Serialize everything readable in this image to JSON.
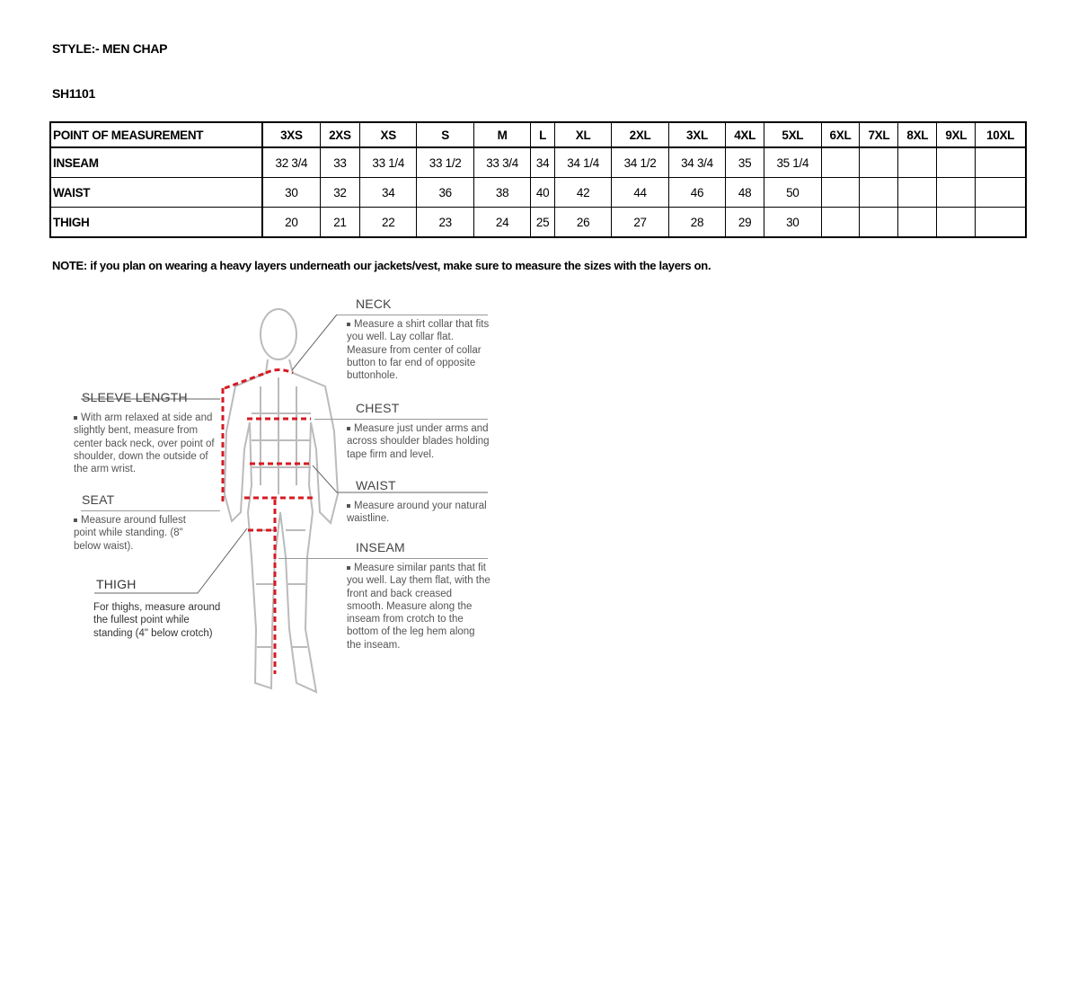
{
  "style_line": "STYLE:- MEN CHAP",
  "sku": "SH1101",
  "table": {
    "header": [
      "POINT OF MEASUREMENT",
      "3XS",
      "2XS",
      "XS",
      "S",
      "M",
      "L",
      "XL",
      "2XL",
      "3XL",
      "4XL",
      "5XL",
      "6XL",
      "7XL",
      "8XL",
      "9XL",
      "10XL"
    ],
    "rows": [
      [
        "INSEAM",
        "32 3/4",
        "33",
        "33 1/4",
        "33 1/2",
        "33 3/4",
        "34",
        "34 1/4",
        "34 1/2",
        "34 3/4",
        "35",
        "35 1/4",
        "",
        "",
        "",
        "",
        ""
      ],
      [
        "WAIST",
        "30",
        "32",
        "34",
        "36",
        "38",
        "40",
        "42",
        "44",
        "46",
        "48",
        "50",
        "",
        "",
        "",
        "",
        ""
      ],
      [
        "THIGH",
        "20",
        "21",
        "22",
        "23",
        "24",
        "25",
        "26",
        "27",
        "28",
        "29",
        "30",
        "",
        "",
        "",
        "",
        ""
      ]
    ]
  },
  "note": "NOTE: if you plan on wearing a heavy layers underneath our jackets/vest, make sure to measure the sizes with the layers on.",
  "guide": {
    "neck": {
      "title": "NECK",
      "text": "Measure a shirt collar that fits you well. Lay collar flat. Measure from center of collar button to far end of opposite buttonhole."
    },
    "chest": {
      "title": "CHEST",
      "text": "Measure just under arms and across shoulder blades holding tape firm and level."
    },
    "waist": {
      "title": "WAIST",
      "text": "Measure around your natural waistline."
    },
    "inseam": {
      "title": "INSEAM",
      "text": "Measure similar pants that fit you well. Lay them flat, with the front and back creased smooth. Measure along the inseam from crotch to the bottom of the leg hem along the inseam."
    },
    "sleeve": {
      "title": "SLEEVE LENGTH",
      "text": "With arm relaxed at side and slightly bent, measure from center back neck, over point of shoulder, down the outside of the arm wrist."
    },
    "seat": {
      "title": "SEAT",
      "text": "Measure around fullest point while standing. (8\" below waist)."
    },
    "thigh": {
      "title": "THIGH",
      "text": "For thighs, measure around the fullest point while standing (4\" below crotch)"
    }
  },
  "colors": {
    "measure_line": "#d71920",
    "figure": "#bbbbbb"
  }
}
